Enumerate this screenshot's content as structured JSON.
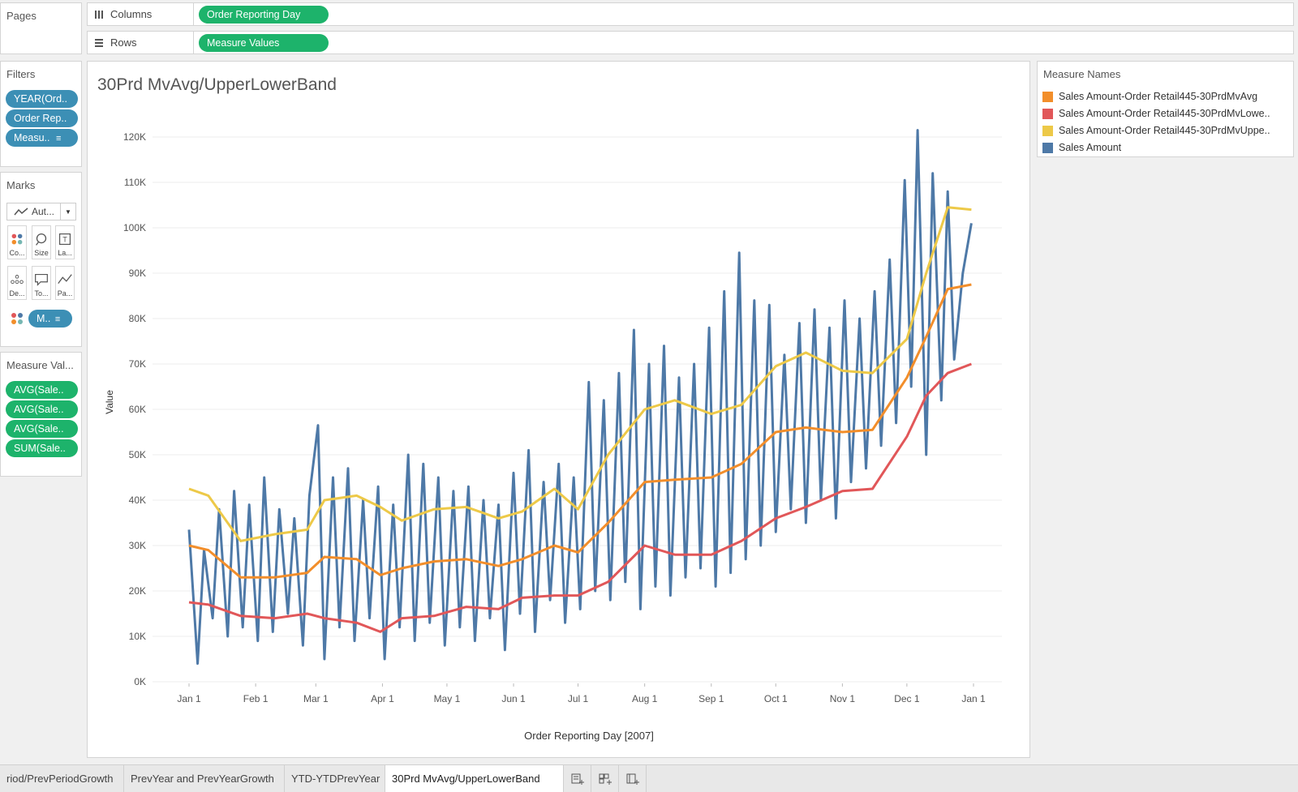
{
  "pages": {
    "title": "Pages"
  },
  "columns_shelf": {
    "label": "Columns",
    "pill": "Order Reporting Day"
  },
  "rows_shelf": {
    "label": "Rows",
    "pill": "Measure Values"
  },
  "filters": {
    "title": "Filters",
    "pills": [
      "YEAR(Ord..",
      "Order Rep..",
      "Measu.."
    ]
  },
  "marks": {
    "title": "Marks",
    "type_label": "Aut...",
    "buttons": [
      "Co...",
      "Size",
      "La...",
      "De...",
      "To...",
      "Pa..."
    ],
    "detail_pill": "M.."
  },
  "measure_values": {
    "title": "Measure Val...",
    "pills": [
      "AVG(Sale..",
      "AVG(Sale..",
      "AVG(Sale..",
      "SUM(Sale.."
    ]
  },
  "legend": {
    "title": "Measure Names",
    "items": [
      {
        "label": "Sales Amount-Order Retail445-30PrdMvAvg",
        "color": "#f28e2b"
      },
      {
        "label": "Sales Amount-Order Retail445-30PrdMvLowe..",
        "color": "#e15759"
      },
      {
        "label": "Sales Amount-Order Retail445-30PrdMvUppe..",
        "color": "#edc948"
      },
      {
        "label": "Sales Amount",
        "color": "#4e79a7"
      }
    ]
  },
  "tabs": [
    "riod/PrevPeriodGrowth",
    "PrevYear and PrevYearGrowth",
    "YTD-YTDPrevYear",
    "30Prd MvAvg/UpperLowerBand"
  ],
  "active_tab_index": 3,
  "chart_data": {
    "type": "line",
    "title": "30Prd MvAvg/UpperLowerBand",
    "xlabel": "Order Reporting Day [2007]",
    "ylabel": "Value",
    "ylim": [
      0,
      125000
    ],
    "yticks": [
      "0K",
      "10K",
      "20K",
      "30K",
      "40K",
      "50K",
      "60K",
      "70K",
      "80K",
      "90K",
      "100K",
      "110K",
      "120K"
    ],
    "xticks": [
      "Jan 1",
      "Feb 1",
      "Mar 1",
      "Apr 1",
      "May 1",
      "Jun 1",
      "Jul 1",
      "Aug 1",
      "Sep 1",
      "Oct 1",
      "Nov 1",
      "Dec 1",
      "Jan 1"
    ],
    "grid": true,
    "legend_position": "right",
    "series": [
      {
        "name": "Sales Amount-Order Retail445-30PrdMvUppe..",
        "color": "#edc948",
        "x": [
          "2007-01-01",
          "2007-01-10",
          "2007-01-25",
          "2007-02-10",
          "2007-02-25",
          "2007-03-05",
          "2007-03-20",
          "2007-03-31",
          "2007-04-10",
          "2007-04-25",
          "2007-05-10",
          "2007-05-25",
          "2007-06-05",
          "2007-06-20",
          "2007-07-01",
          "2007-07-15",
          "2007-08-01",
          "2007-08-15",
          "2007-09-01",
          "2007-09-15",
          "2007-10-01",
          "2007-10-15",
          "2007-11-01",
          "2007-11-15",
          "2007-12-01",
          "2007-12-10",
          "2007-12-20",
          "2007-12-31"
        ],
        "y": [
          42500,
          41000,
          31000,
          32500,
          33500,
          40000,
          41000,
          38500,
          35500,
          38000,
          38500,
          36000,
          37500,
          42500,
          38000,
          50000,
          60000,
          62000,
          59000,
          61000,
          69500,
          72500,
          68500,
          68000,
          75500,
          90000,
          104500,
          104000
        ]
      },
      {
        "name": "Sales Amount-Order Retail445-30PrdMvAvg",
        "color": "#f28e2b",
        "x": [
          "2007-01-01",
          "2007-01-10",
          "2007-01-25",
          "2007-02-10",
          "2007-02-25",
          "2007-03-05",
          "2007-03-20",
          "2007-03-31",
          "2007-04-10",
          "2007-04-25",
          "2007-05-10",
          "2007-05-25",
          "2007-06-05",
          "2007-06-20",
          "2007-07-01",
          "2007-07-15",
          "2007-08-01",
          "2007-08-15",
          "2007-09-01",
          "2007-09-15",
          "2007-10-01",
          "2007-10-15",
          "2007-11-01",
          "2007-11-15",
          "2007-12-01",
          "2007-12-10",
          "2007-12-20",
          "2007-12-31"
        ],
        "y": [
          30000,
          29000,
          23000,
          23000,
          24000,
          27500,
          27000,
          23500,
          25000,
          26500,
          27000,
          25500,
          27000,
          30000,
          28500,
          35000,
          44000,
          44500,
          45000,
          48000,
          55000,
          56000,
          55000,
          55500,
          67000,
          76000,
          86500,
          87500
        ]
      },
      {
        "name": "Sales Amount-Order Retail445-30PrdMvLowe..",
        "color": "#e15759",
        "x": [
          "2007-01-01",
          "2007-01-10",
          "2007-01-25",
          "2007-02-10",
          "2007-02-25",
          "2007-03-05",
          "2007-03-20",
          "2007-03-31",
          "2007-04-10",
          "2007-04-25",
          "2007-05-10",
          "2007-05-25",
          "2007-06-05",
          "2007-06-20",
          "2007-07-01",
          "2007-07-15",
          "2007-08-01",
          "2007-08-15",
          "2007-09-01",
          "2007-09-15",
          "2007-10-01",
          "2007-10-15",
          "2007-11-01",
          "2007-11-15",
          "2007-12-01",
          "2007-12-10",
          "2007-12-20",
          "2007-12-31"
        ],
        "y": [
          17500,
          17000,
          14500,
          14000,
          15000,
          14000,
          13000,
          11000,
          14000,
          14500,
          16500,
          16000,
          18500,
          19000,
          19000,
          22000,
          30000,
          28000,
          28000,
          31000,
          36000,
          38500,
          42000,
          42500,
          54000,
          63000,
          68000,
          70000
        ]
      },
      {
        "name": "Sales Amount",
        "color": "#4e79a7",
        "x": [
          "2007-01-01",
          "2007-01-05",
          "2007-01-08",
          "2007-01-12",
          "2007-01-15",
          "2007-01-19",
          "2007-01-22",
          "2007-01-26",
          "2007-01-29",
          "2007-02-02",
          "2007-02-05",
          "2007-02-09",
          "2007-02-12",
          "2007-02-16",
          "2007-02-19",
          "2007-02-23",
          "2007-02-26",
          "2007-03-02",
          "2007-03-05",
          "2007-03-09",
          "2007-03-12",
          "2007-03-16",
          "2007-03-19",
          "2007-03-23",
          "2007-03-26",
          "2007-03-30",
          "2007-04-02",
          "2007-04-06",
          "2007-04-09",
          "2007-04-13",
          "2007-04-16",
          "2007-04-20",
          "2007-04-23",
          "2007-04-27",
          "2007-04-30",
          "2007-05-04",
          "2007-05-07",
          "2007-05-11",
          "2007-05-14",
          "2007-05-18",
          "2007-05-21",
          "2007-05-25",
          "2007-05-28",
          "2007-06-01",
          "2007-06-04",
          "2007-06-08",
          "2007-06-11",
          "2007-06-15",
          "2007-06-18",
          "2007-06-22",
          "2007-06-25",
          "2007-06-29",
          "2007-07-02",
          "2007-07-06",
          "2007-07-09",
          "2007-07-13",
          "2007-07-16",
          "2007-07-20",
          "2007-07-23",
          "2007-07-27",
          "2007-07-30",
          "2007-08-03",
          "2007-08-06",
          "2007-08-10",
          "2007-08-13",
          "2007-08-17",
          "2007-08-20",
          "2007-08-24",
          "2007-08-27",
          "2007-08-31",
          "2007-09-03",
          "2007-09-07",
          "2007-09-10",
          "2007-09-14",
          "2007-09-17",
          "2007-09-21",
          "2007-09-24",
          "2007-09-28",
          "2007-10-01",
          "2007-10-05",
          "2007-10-08",
          "2007-10-12",
          "2007-10-15",
          "2007-10-19",
          "2007-10-22",
          "2007-10-26",
          "2007-10-29",
          "2007-11-02",
          "2007-11-05",
          "2007-11-09",
          "2007-11-12",
          "2007-11-16",
          "2007-11-19",
          "2007-11-23",
          "2007-11-26",
          "2007-11-30",
          "2007-12-03",
          "2007-12-06",
          "2007-12-10",
          "2007-12-13",
          "2007-12-17",
          "2007-12-20",
          "2007-12-23",
          "2007-12-27",
          "2007-12-31"
        ],
        "y": [
          33500,
          4000,
          29000,
          14000,
          38000,
          10000,
          42000,
          12000,
          39000,
          9000,
          45000,
          11000,
          38000,
          15000,
          36000,
          8000,
          41000,
          56500,
          5000,
          45000,
          12000,
          47000,
          9000,
          40000,
          14000,
          43000,
          5000,
          39000,
          12000,
          50000,
          9000,
          48000,
          13000,
          45000,
          8000,
          42000,
          12000,
          43000,
          9000,
          40000,
          14000,
          39000,
          7000,
          46000,
          15000,
          51000,
          11000,
          44000,
          18000,
          48000,
          13000,
          45000,
          16000,
          66000,
          20000,
          62000,
          18000,
          68000,
          22000,
          77500,
          16000,
          70000,
          21000,
          74000,
          19000,
          67000,
          23000,
          70000,
          25000,
          78000,
          21000,
          86000,
          24000,
          94500,
          27000,
          84000,
          30000,
          83000,
          33000,
          72000,
          38000,
          79000,
          35000,
          82000,
          40000,
          78000,
          36000,
          84000,
          44000,
          80000,
          47000,
          86000,
          52000,
          93000,
          57000,
          110500,
          65000,
          121500,
          50000,
          112000,
          62000,
          108000,
          71000,
          90000,
          101000
        ]
      }
    ]
  }
}
